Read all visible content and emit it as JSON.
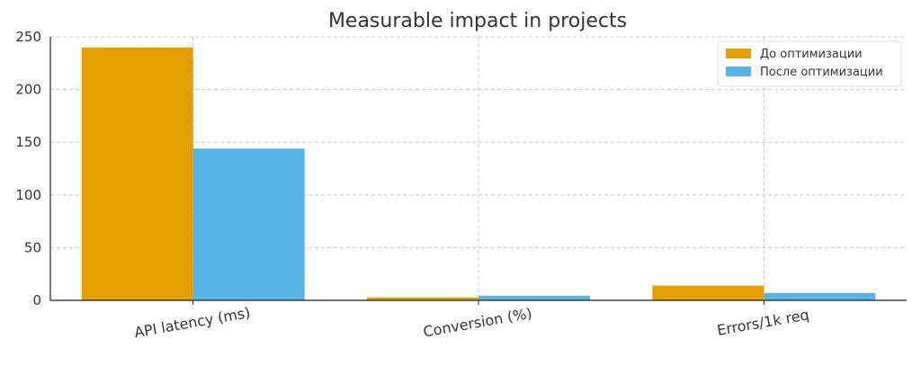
{
  "chart_data": {
    "type": "bar",
    "title": "Measurable impact in projects",
    "categories": [
      "API latency (ms)",
      "Conversion (%)",
      "Errors/1k req"
    ],
    "series": [
      {
        "name": "До оптимизации",
        "color": "#E69F00",
        "values": [
          240,
          2.8,
          14
        ]
      },
      {
        "name": "После оптимизации",
        "color": "#56B4E9",
        "values": [
          144,
          4.4,
          7
        ]
      }
    ],
    "yticks": [
      0,
      50,
      100,
      150,
      200,
      250
    ],
    "ylim": [
      0,
      250
    ],
    "xlabel": "",
    "ylabel": "",
    "grid": true,
    "legend_position": "top-right"
  }
}
